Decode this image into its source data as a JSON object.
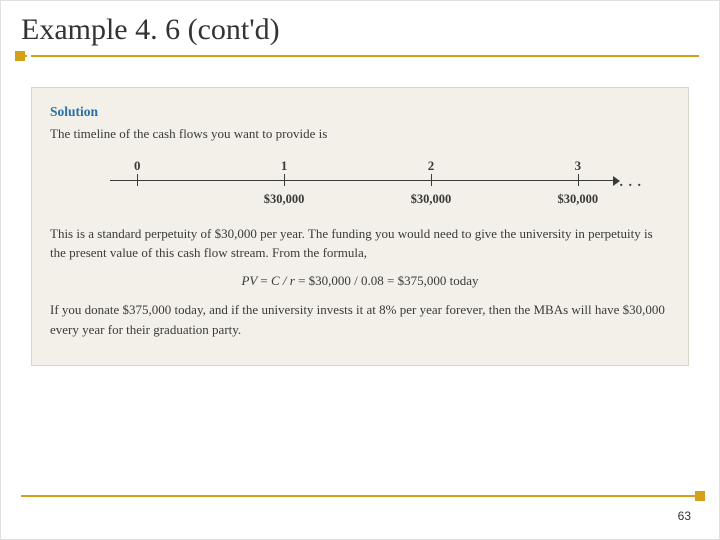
{
  "title": "Example 4. 6 (cont'd)",
  "pageNumber": "63",
  "solution": {
    "label": "Solution",
    "intro": "The timeline of the cash flows you want to provide is",
    "timeline": {
      "periods": [
        "0",
        "1",
        "2",
        "3"
      ],
      "values": [
        "",
        "$30,000",
        "$30,000",
        "$30,000"
      ],
      "continue": ". . ."
    },
    "para1": "This is a standard perpetuity of $30,000 per year. The funding you would need to give the university in perpetuity is the present value of this cash flow stream. From the formula,",
    "formula_lhs": "PV",
    "formula_mid": "C / r",
    "formula_calc": "$30,000 / 0.08",
    "formula_result": "$375,000 today",
    "para2": "If you donate $375,000 today, and if the university invests it at 8% per year forever, then the MBAs will have $30,000 every year for their graduation party."
  },
  "colors": {
    "accent": "#d4a017",
    "solution_bg": "#f2f0e9",
    "solution_label": "#2a6fa8",
    "text": "#3a3a38"
  }
}
